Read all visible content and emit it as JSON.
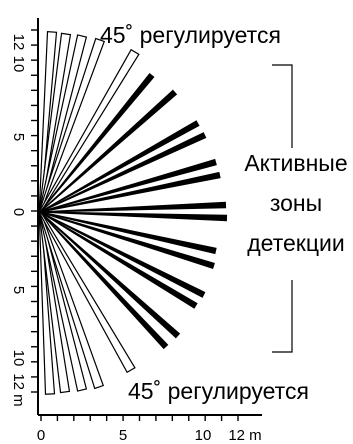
{
  "top_caption": "45˚ регулируется",
  "bottom_caption": "45˚ регулируется",
  "zones_label": [
    "Активные",
    "зоны",
    "детекции"
  ],
  "x_axis": {
    "ticks": [
      "0",
      "5",
      "10",
      "12 m"
    ]
  },
  "y_axis": {
    "ticks": [
      "12",
      "10",
      "5",
      "0",
      "5",
      "10",
      "12 m"
    ]
  },
  "beams": {
    "outline_beams_top": 5,
    "outline_beams_bottom": 5,
    "solid_beams": 14
  },
  "colors": {
    "ink": "#000000",
    "background": "#ffffff"
  }
}
